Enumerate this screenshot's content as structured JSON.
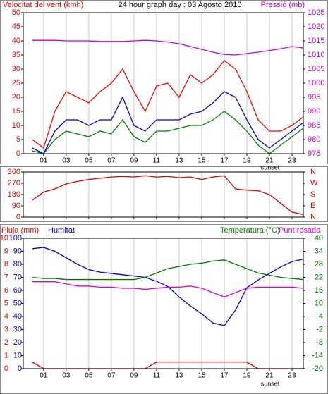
{
  "chart_data": [
    {
      "type": "line",
      "title": "24 hour graph day : 03 Agosto 2010",
      "ylabel": "Velocitat del vent (kmh)",
      "y2label": "Pressió (mb)",
      "annotation": "sunset",
      "x": [
        0,
        1,
        2,
        3,
        4,
        5,
        6,
        7,
        8,
        9,
        10,
        11,
        12,
        13,
        14,
        15,
        16,
        17,
        18,
        19,
        20,
        21,
        22,
        23,
        24
      ],
      "xlim": [
        -0.8,
        24
      ],
      "xticks": [
        {
          "value": 1,
          "label": "01"
        },
        {
          "value": 3,
          "label": "03"
        },
        {
          "value": 5,
          "label": "05"
        },
        {
          "value": 7,
          "label": "07"
        },
        {
          "value": 9,
          "label": "09"
        },
        {
          "value": 11,
          "label": "11"
        },
        {
          "value": 13,
          "label": "13"
        },
        {
          "value": 15,
          "label": "15"
        },
        {
          "value": 17,
          "label": "17"
        },
        {
          "value": 19,
          "label": "19"
        },
        {
          "value": 21,
          "label": "21"
        },
        {
          "value": 23,
          "label": "23"
        }
      ],
      "ylim": [
        0,
        50
      ],
      "yticks": [
        0,
        5,
        10,
        15,
        20,
        25,
        30,
        35,
        40,
        45,
        50
      ],
      "y2lim": [
        975,
        1025
      ],
      "y2ticks": [
        975,
        980,
        985,
        990,
        995,
        1000,
        1005,
        1010,
        1015,
        1020,
        1025
      ],
      "series": [
        {
          "color": "#ff0000",
          "values": [
            5,
            2,
            15,
            22,
            20,
            18,
            22,
            25,
            30,
            22,
            15,
            24,
            25,
            20,
            28,
            25,
            28,
            33,
            30,
            22,
            12,
            8,
            8,
            10,
            13
          ]
        },
        {
          "color": "#008000",
          "values": [
            1,
            0,
            5,
            8,
            7,
            6,
            8,
            7,
            12,
            6,
            4,
            8,
            8,
            9,
            10,
            10,
            12,
            15,
            12,
            8,
            3,
            0,
            3,
            6,
            9
          ]
        },
        {
          "color": "#0000cc",
          "values": [
            2,
            0,
            8,
            12,
            12,
            10,
            12,
            12,
            20,
            10,
            8,
            12,
            12,
            12,
            14,
            15,
            18,
            22,
            20,
            12,
            5,
            2,
            5,
            8,
            11
          ]
        },
        {
          "color": "#cc00cc",
          "axis": "y2",
          "values": [
            1015.2,
            1015.2,
            1015.2,
            1015,
            1015,
            1015,
            1014.8,
            1014.8,
            1014.8,
            1015,
            1015.2,
            1015,
            1014.6,
            1014,
            1013,
            1012,
            1011,
            1010.2,
            1010,
            1010.5,
            1011,
            1011.6,
            1012.2,
            1013,
            1012.5
          ]
        }
      ]
    },
    {
      "type": "line",
      "x": [
        0,
        1,
        2,
        3,
        4,
        5,
        6,
        7,
        8,
        9,
        10,
        11,
        12,
        13,
        14,
        15,
        16,
        17,
        18,
        19,
        20,
        21,
        22,
        23,
        24
      ],
      "xlim": [
        -0.8,
        24
      ],
      "xticks": [
        1,
        3,
        5,
        7,
        9,
        11,
        13,
        15,
        17,
        19,
        21,
        23
      ],
      "ylim": [
        0,
        360
      ],
      "yticks": [
        0,
        90,
        180,
        270,
        360
      ],
      "y2lim": [
        0,
        360
      ],
      "y2ticks": [
        {
          "value": 0,
          "label": "N"
        },
        {
          "value": 90,
          "label": "E"
        },
        {
          "value": 180,
          "label": "S"
        },
        {
          "value": 270,
          "label": "W"
        },
        {
          "value": 360,
          "label": "N"
        }
      ],
      "series": [
        {
          "color": "#dd0000",
          "values": [
            135,
            200,
            225,
            265,
            285,
            300,
            310,
            320,
            325,
            320,
            330,
            320,
            325,
            315,
            320,
            300,
            320,
            330,
            225,
            215,
            210,
            180,
            110,
            40,
            20
          ]
        }
      ]
    },
    {
      "type": "line",
      "ylabel": "Pluja (mm)",
      "y3label": "Humitat",
      "y2label": "Temperatura (°C)",
      "y2label2": "Punt rosada",
      "annotation": "sunset",
      "x": [
        0,
        1,
        2,
        3,
        4,
        5,
        6,
        7,
        8,
        9,
        10,
        11,
        12,
        13,
        14,
        15,
        16,
        17,
        18,
        19,
        20,
        21,
        22,
        23,
        24
      ],
      "xlim": [
        -0.8,
        24
      ],
      "xticks": [
        {
          "value": 1,
          "label": "01"
        },
        {
          "value": 3,
          "label": "03"
        },
        {
          "value": 5,
          "label": "05"
        },
        {
          "value": 7,
          "label": "07"
        },
        {
          "value": 9,
          "label": "09"
        },
        {
          "value": 11,
          "label": "11"
        },
        {
          "value": 13,
          "label": "13"
        },
        {
          "value": 15,
          "label": "15"
        },
        {
          "value": 17,
          "label": "17"
        },
        {
          "value": 19,
          "label": "19"
        },
        {
          "value": 21,
          "label": "21"
        },
        {
          "value": 23,
          "label": "23"
        }
      ],
      "ylim": [
        0,
        10
      ],
      "yticks": [
        0,
        1,
        2,
        3,
        4,
        5,
        6,
        7,
        8,
        9,
        10
      ],
      "y3lim": [
        0,
        100
      ],
      "y3ticks": [
        0,
        10,
        20,
        30,
        40,
        50,
        60,
        70,
        80,
        90,
        100
      ],
      "y2lim": [
        -20,
        40
      ],
      "y2ticks": [
        -20,
        -14,
        -8,
        -2,
        4,
        10,
        16,
        22,
        28,
        34,
        40
      ],
      "series": [
        {
          "color": "#dd0000",
          "values": [
            0.5,
            0,
            0,
            0,
            0,
            0,
            0,
            0,
            0,
            0,
            0,
            0.5,
            0.5,
            0.5,
            0.5,
            0.5,
            0.5,
            0.5,
            0.5,
            0.5,
            0,
            0,
            0,
            0,
            0
          ]
        },
        {
          "color": "#0000cc",
          "axis": "y3",
          "values": [
            92,
            93,
            90,
            85,
            80,
            76,
            74,
            73,
            72,
            71,
            70,
            67,
            63,
            55,
            48,
            42,
            35,
            33,
            45,
            62,
            68,
            73,
            78,
            82,
            84
          ]
        },
        {
          "color": "#007700",
          "axis": "y2",
          "values": [
            22,
            21.5,
            21.5,
            21,
            21,
            21,
            21,
            21,
            21,
            21,
            22,
            24,
            26,
            27,
            28,
            28.5,
            29.5,
            30,
            28,
            26,
            24,
            23,
            22,
            21.5,
            21
          ]
        },
        {
          "color": "#dd00dd",
          "axis": "y2",
          "values": [
            20,
            20,
            20,
            19,
            18,
            18,
            17.5,
            17.5,
            17,
            17,
            16.5,
            17,
            17.5,
            17.5,
            18,
            17,
            15,
            13,
            15,
            17,
            17.5,
            17.5,
            17.5,
            17.5,
            17
          ]
        }
      ]
    }
  ]
}
